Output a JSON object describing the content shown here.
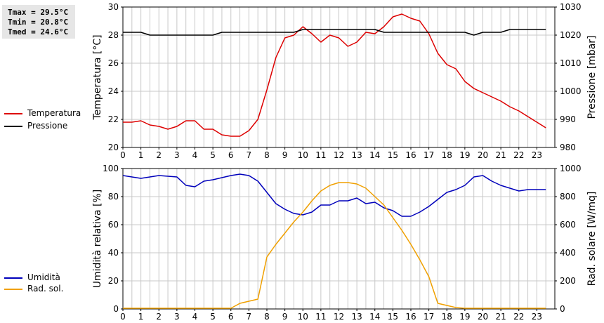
{
  "stats": {
    "tmax": "Tmax = 29.5°C",
    "tmin": "Tmin = 20.8°C",
    "tmed": "Tmed = 24.6°C"
  },
  "legend_top": [
    {
      "label": "Temperatura",
      "color": "#dd0000"
    },
    {
      "label": "Pressione",
      "color": "#000000"
    }
  ],
  "legend_bottom": [
    {
      "label": "Umidità",
      "color": "#0000bb"
    },
    {
      "label": "Rad. sol.",
      "color": "#f0a000"
    }
  ],
  "chart_data": [
    {
      "type": "line",
      "xlabel": "",
      "x_ticks": [
        "0",
        "1",
        "2",
        "3",
        "4",
        "5",
        "6",
        "7",
        "8",
        "9",
        "10",
        "11",
        "12",
        "13",
        "14",
        "15",
        "16",
        "17",
        "18",
        "19",
        "20",
        "21",
        "22",
        "23"
      ],
      "xlim": [
        0,
        24
      ],
      "ylabel": "Temperatura [°C]",
      "ylim": [
        20,
        30
      ],
      "y_ticks": [
        20,
        22,
        24,
        26,
        28,
        30
      ],
      "ylabel_right": "Pressione [mbar]",
      "ylim_right": [
        980,
        1030
      ],
      "y_ticks_right": [
        980,
        990,
        1000,
        1010,
        1020,
        1030
      ],
      "grid": true,
      "series": [
        {
          "name": "Temperatura",
          "axis": "left",
          "color": "#dd0000",
          "x": [
            0,
            0.5,
            1,
            1.5,
            2,
            2.5,
            3,
            3.5,
            4,
            4.5,
            5,
            5.5,
            6,
            6.5,
            7,
            7.5,
            8,
            8.5,
            9,
            9.5,
            10,
            10.5,
            11,
            11.5,
            12,
            12.5,
            13,
            13.5,
            14,
            14.5,
            15,
            15.5,
            16,
            16.5,
            17,
            17.5,
            18,
            18.5,
            19,
            19.5,
            20,
            20.5,
            21,
            21.5,
            22,
            22.5,
            23,
            23.5
          ],
          "y": [
            21.8,
            21.8,
            21.9,
            21.6,
            21.5,
            21.3,
            21.5,
            21.9,
            21.9,
            21.3,
            21.3,
            20.9,
            20.8,
            20.8,
            21.2,
            22.0,
            24.1,
            26.4,
            27.8,
            28.0,
            28.6,
            28.1,
            27.5,
            28.0,
            27.8,
            27.2,
            27.5,
            28.2,
            28.1,
            28.6,
            29.3,
            29.5,
            29.2,
            29.0,
            28.1,
            26.7,
            25.9,
            25.6,
            24.7,
            24.2,
            23.9,
            23.6,
            23.3,
            22.9,
            22.6,
            22.2,
            21.8,
            21.4
          ]
        },
        {
          "name": "Pressione",
          "axis": "right",
          "color": "#000000",
          "x": [
            0,
            1,
            1.5,
            2,
            3,
            4,
            5,
            5.5,
            6,
            7,
            8,
            9,
            9.5,
            10,
            11,
            12,
            13,
            14,
            14.5,
            15,
            16,
            17,
            18,
            19,
            19.5,
            20,
            21,
            21.5,
            22,
            23,
            23.5
          ],
          "y": [
            1021,
            1021,
            1020,
            1020,
            1020,
            1020,
            1020,
            1021,
            1021,
            1021,
            1021,
            1021,
            1021,
            1022,
            1022,
            1022,
            1022,
            1022,
            1021,
            1021,
            1021,
            1021,
            1021,
            1021,
            1020,
            1021,
            1021,
            1022,
            1022,
            1022,
            1022
          ]
        }
      ]
    },
    {
      "type": "line",
      "xlabel": "",
      "x_ticks": [
        "0",
        "1",
        "2",
        "3",
        "4",
        "5",
        "6",
        "7",
        "8",
        "9",
        "10",
        "11",
        "12",
        "13",
        "14",
        "15",
        "16",
        "17",
        "18",
        "19",
        "20",
        "21",
        "22",
        "23"
      ],
      "xlim": [
        0,
        24
      ],
      "ylabel": "Umidità relativa [%]",
      "ylim": [
        0,
        100
      ],
      "y_ticks": [
        0,
        20,
        40,
        60,
        80,
        100
      ],
      "ylabel_right": "Rad. solare [W/mq]",
      "ylim_right": [
        0,
        1000
      ],
      "y_ticks_right": [
        0,
        200,
        400,
        600,
        800,
        1000
      ],
      "grid": true,
      "series": [
        {
          "name": "Umidità",
          "axis": "left",
          "color": "#0000bb",
          "x": [
            0,
            1,
            2,
            3,
            3.5,
            4,
            4.5,
            5,
            6,
            6.5,
            7,
            7.5,
            8,
            8.5,
            9,
            9.5,
            10,
            10.5,
            11,
            11.5,
            12,
            12.5,
            13,
            13.5,
            14,
            14.5,
            15,
            15.5,
            16,
            16.5,
            17,
            17.5,
            18,
            18.5,
            19,
            19.5,
            20,
            20.5,
            21,
            22,
            22.5,
            23,
            23.5
          ],
          "y": [
            95,
            93,
            95,
            94,
            88,
            87,
            91,
            92,
            95,
            96,
            95,
            91,
            83,
            75,
            71,
            68,
            67,
            69,
            74,
            74,
            77,
            77,
            79,
            75,
            76,
            72,
            70,
            66,
            66,
            69,
            73,
            78,
            83,
            85,
            88,
            94,
            95,
            91,
            88,
            84,
            85,
            85,
            85
          ]
        },
        {
          "name": "Rad. sol.",
          "axis": "right",
          "color": "#f0a000",
          "x": [
            0,
            5,
            6,
            6.5,
            7,
            7.5,
            8,
            8.5,
            9,
            9.5,
            10,
            10.5,
            11,
            11.5,
            12,
            12.5,
            13,
            13.5,
            14,
            14.5,
            15,
            15.5,
            16,
            16.5,
            17,
            17.5,
            18,
            18.5,
            19,
            20,
            23.5
          ],
          "y": [
            5,
            5,
            5,
            40,
            55,
            70,
            370,
            460,
            540,
            620,
            690,
            770,
            840,
            880,
            900,
            900,
            890,
            860,
            800,
            740,
            650,
            560,
            460,
            350,
            230,
            40,
            25,
            10,
            5,
            5,
            5
          ]
        }
      ]
    }
  ]
}
